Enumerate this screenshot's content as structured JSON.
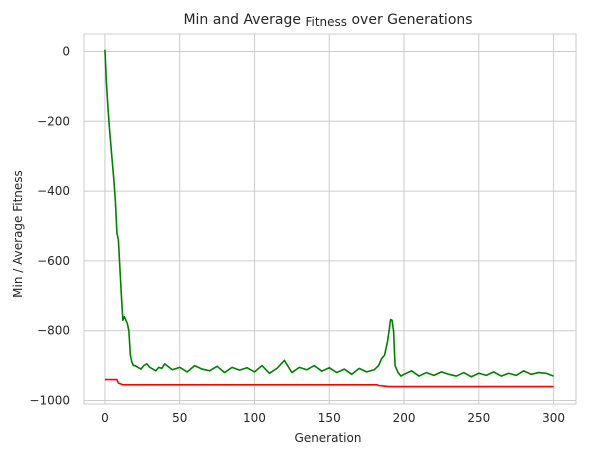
{
  "chart_data": {
    "type": "line",
    "title_parts": [
      "Min and Average",
      "Fitness",
      "over Generations"
    ],
    "xlabel": "Generation",
    "ylabel": "Min / Average Fitness",
    "xlim": [
      -14,
      315
    ],
    "ylim": [
      -1010,
      50
    ],
    "xticks": [
      0,
      50,
      100,
      150,
      200,
      250,
      300
    ],
    "yticks": [
      0,
      -200,
      -400,
      -600,
      -800,
      -1000
    ],
    "grid": true,
    "colors": {
      "average": "#008000",
      "min": "#ff0000",
      "grid": "#cccccc",
      "spine": "#cccccc"
    },
    "series": [
      {
        "key": "average",
        "points": [
          [
            0,
            5
          ],
          [
            1,
            -90
          ],
          [
            2,
            -160
          ],
          [
            3,
            -220
          ],
          [
            4,
            -270
          ],
          [
            5,
            -320
          ],
          [
            6,
            -370
          ],
          [
            7,
            -430
          ],
          [
            8,
            -520
          ],
          [
            9,
            -540
          ],
          [
            10,
            -620
          ],
          [
            11,
            -700
          ],
          [
            12,
            -770
          ],
          [
            13,
            -760
          ],
          [
            14,
            -770
          ],
          [
            15,
            -780
          ],
          [
            16,
            -800
          ],
          [
            17,
            -870
          ],
          [
            18,
            -890
          ],
          [
            19,
            -900
          ],
          [
            20,
            -900
          ],
          [
            22,
            -905
          ],
          [
            24,
            -910
          ],
          [
            26,
            -900
          ],
          [
            28,
            -895
          ],
          [
            30,
            -905
          ],
          [
            32,
            -910
          ],
          [
            34,
            -915
          ],
          [
            36,
            -905
          ],
          [
            38,
            -908
          ],
          [
            40,
            -895
          ],
          [
            45,
            -912
          ],
          [
            50,
            -905
          ],
          [
            55,
            -918
          ],
          [
            60,
            -900
          ],
          [
            65,
            -910
          ],
          [
            70,
            -915
          ],
          [
            75,
            -902
          ],
          [
            80,
            -920
          ],
          [
            85,
            -905
          ],
          [
            90,
            -913
          ],
          [
            95,
            -906
          ],
          [
            100,
            -918
          ],
          [
            105,
            -900
          ],
          [
            110,
            -922
          ],
          [
            115,
            -908
          ],
          [
            120,
            -885
          ],
          [
            125,
            -920
          ],
          [
            130,
            -905
          ],
          [
            135,
            -912
          ],
          [
            140,
            -900
          ],
          [
            145,
            -916
          ],
          [
            150,
            -906
          ],
          [
            155,
            -920
          ],
          [
            160,
            -910
          ],
          [
            165,
            -925
          ],
          [
            170,
            -908
          ],
          [
            175,
            -918
          ],
          [
            180,
            -912
          ],
          [
            183,
            -900
          ],
          [
            185,
            -880
          ],
          [
            187,
            -870
          ],
          [
            189,
            -830
          ],
          [
            190,
            -800
          ],
          [
            191,
            -768
          ],
          [
            192,
            -770
          ],
          [
            193,
            -800
          ],
          [
            194,
            -900
          ],
          [
            196,
            -920
          ],
          [
            198,
            -930
          ],
          [
            200,
            -925
          ],
          [
            205,
            -915
          ],
          [
            210,
            -930
          ],
          [
            215,
            -920
          ],
          [
            220,
            -928
          ],
          [
            225,
            -918
          ],
          [
            230,
            -925
          ],
          [
            235,
            -930
          ],
          [
            240,
            -920
          ],
          [
            245,
            -932
          ],
          [
            250,
            -922
          ],
          [
            255,
            -928
          ],
          [
            260,
            -918
          ],
          [
            265,
            -930
          ],
          [
            270,
            -922
          ],
          [
            275,
            -928
          ],
          [
            280,
            -915
          ],
          [
            285,
            -925
          ],
          [
            290,
            -920
          ],
          [
            295,
            -922
          ],
          [
            300,
            -930
          ]
        ]
      },
      {
        "key": "min",
        "points": [
          [
            0,
            -940
          ],
          [
            8,
            -940
          ],
          [
            9,
            -950
          ],
          [
            12,
            -955
          ],
          [
            182,
            -955
          ],
          [
            183,
            -957
          ],
          [
            190,
            -960
          ],
          [
            300,
            -960
          ]
        ]
      }
    ]
  }
}
